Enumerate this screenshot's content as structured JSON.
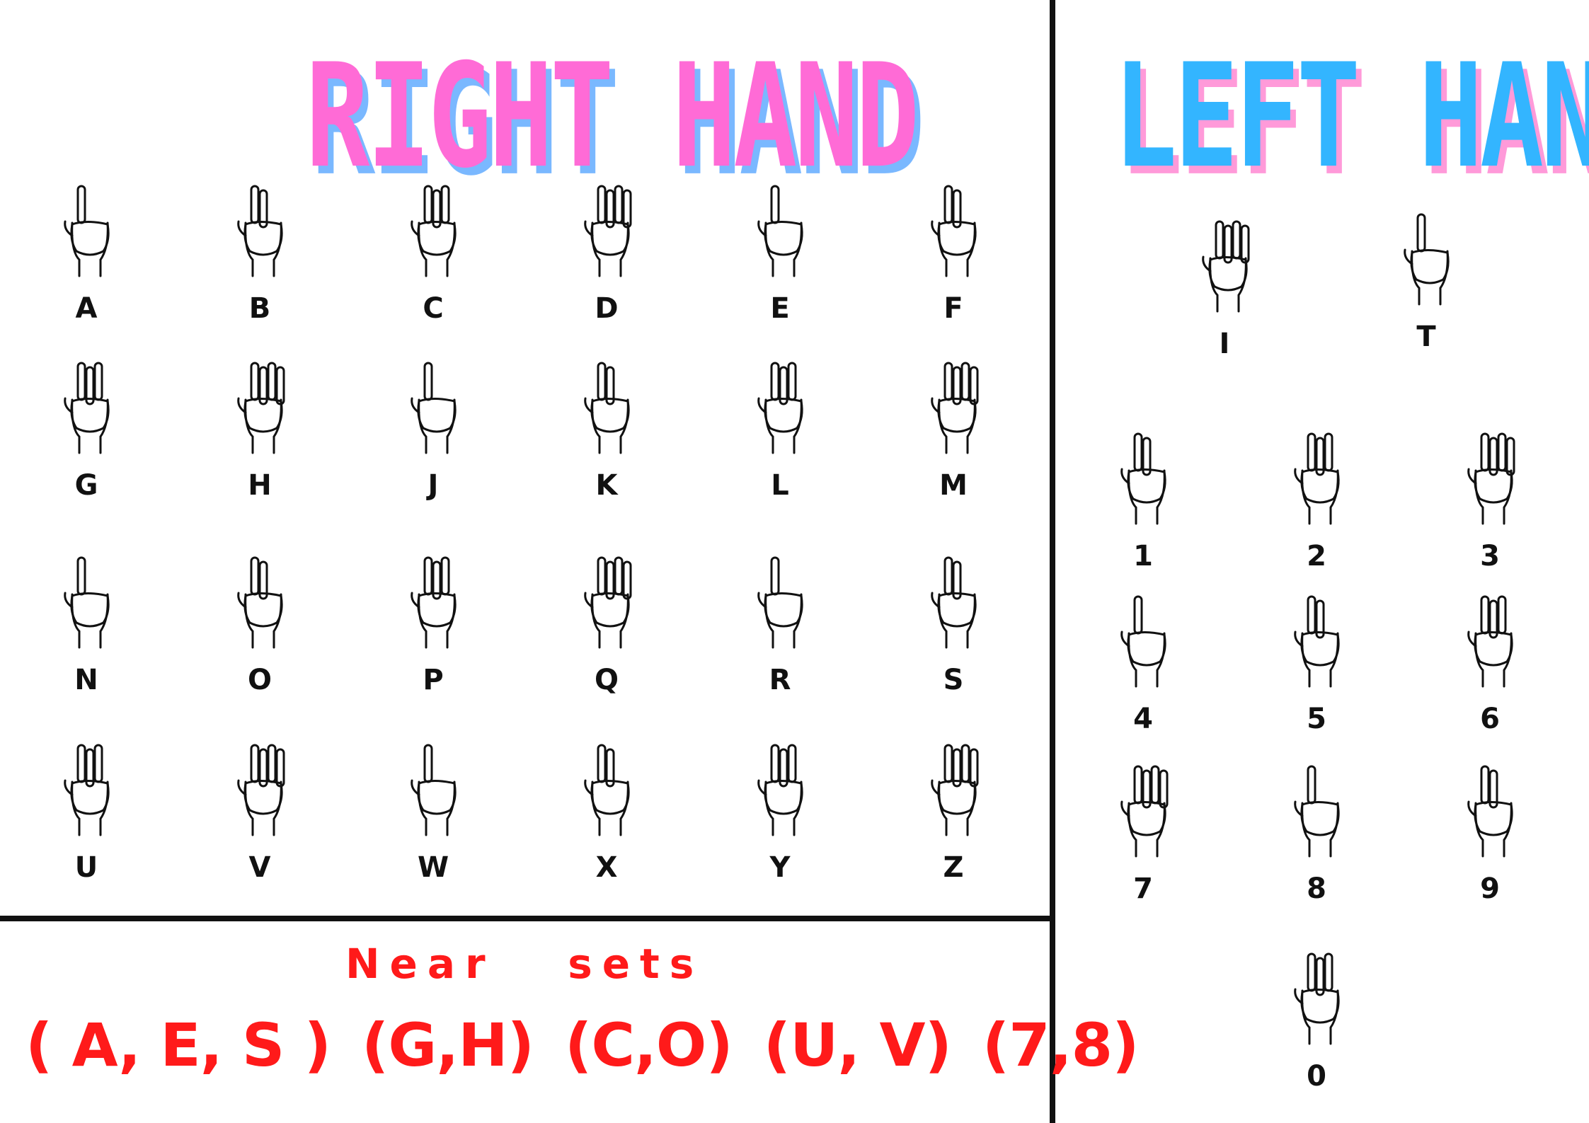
{
  "right_hand": {
    "title": "RIGHT HAND",
    "title_color": "#ff6bd6",
    "shadow_color": "#7ab8ff",
    "letters": [
      "A",
      "B",
      "C",
      "D",
      "E",
      "F",
      "G",
      "H",
      "J",
      "K",
      "L",
      "M",
      "N",
      "O",
      "P",
      "Q",
      "R",
      "S",
      "U",
      "V",
      "W",
      "X",
      "Y",
      "Z"
    ]
  },
  "left_hand": {
    "title": "LEFT HAND",
    "title_color": "#33b5ff",
    "shadow_color": "#ff9ad9",
    "letters": [
      "I",
      "T"
    ],
    "numbers": [
      "1",
      "2",
      "3",
      "4",
      "5",
      "6",
      "7",
      "8",
      "9",
      "0"
    ]
  },
  "near_sets": {
    "title": "Near   sets",
    "color": "#ff1a1a",
    "groups": [
      "( A, E, S )",
      "(G,H)",
      "(C,O)",
      "(U, V)",
      "(7,8)"
    ]
  },
  "icons": {
    "hand_sign": "hand-sign-icon"
  }
}
